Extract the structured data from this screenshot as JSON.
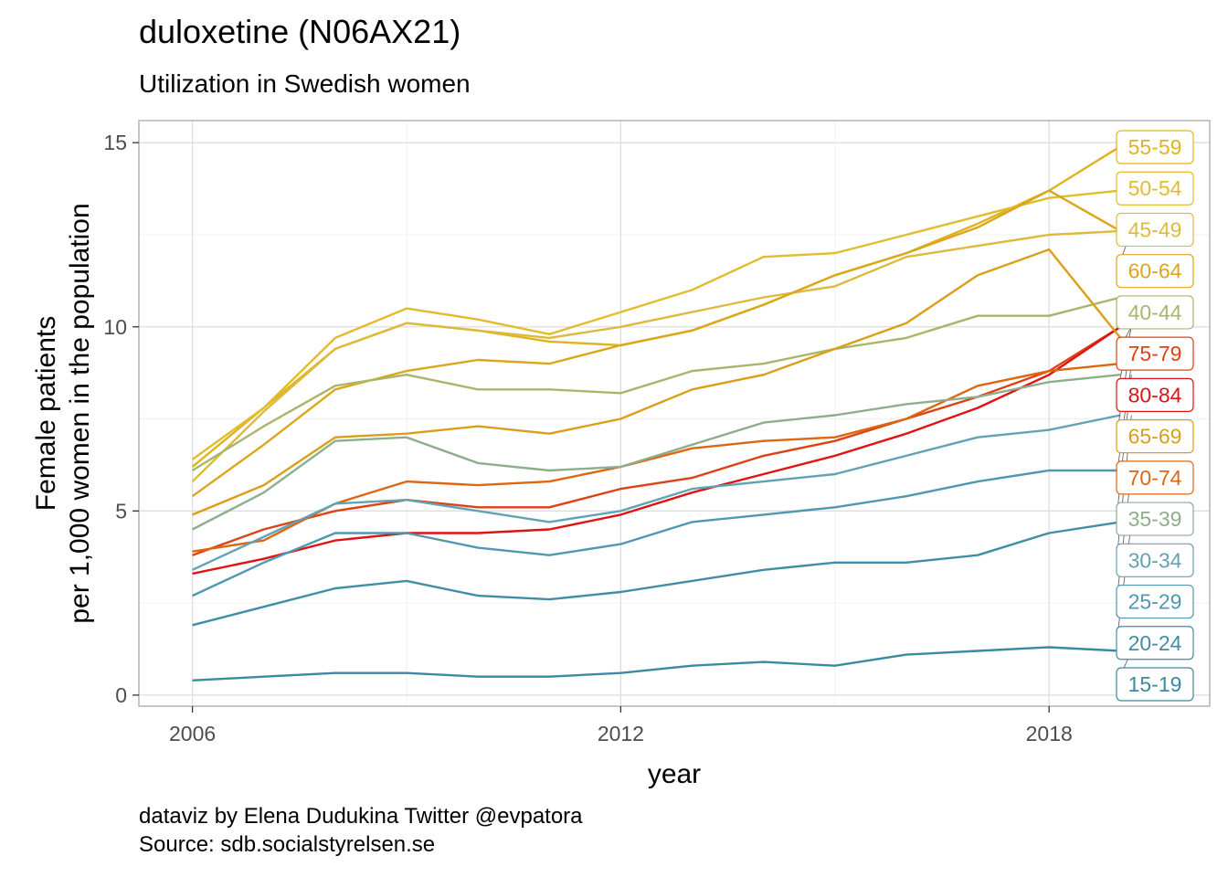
{
  "title": "duloxetine (N06AX21)",
  "subtitle": "Utilization in Swedish women",
  "caption": {
    "line1": "dataviz by Elena Dudukina Twitter @evpatora",
    "line2": "Source: sdb.socialstyrelsen.se"
  },
  "chart_data": {
    "type": "line",
    "title": "duloxetine (N06AX21)",
    "subtitle": "Utilization in Swedish women",
    "xlabel": "year",
    "ylabel": "Female patients\nper 1,000 women in the population",
    "xlim": [
      2005.25,
      2020.25
    ],
    "ylim": [
      -0.3,
      15.6
    ],
    "x_ticks": [
      2006,
      2012,
      2018
    ],
    "y_ticks": [
      0,
      5,
      10,
      15
    ],
    "grid": true,
    "legend": "direct labels at right",
    "x": [
      2006,
      2007,
      2008,
      2009,
      2010,
      2011,
      2012,
      2013,
      2014,
      2015,
      2016,
      2017,
      2018,
      2019
    ],
    "series": [
      {
        "name": "55-59",
        "color": "#E0B21F",
        "values": [
          6.2,
          7.8,
          9.4,
          10.1,
          9.9,
          9.6,
          9.5,
          9.9,
          10.6,
          11.4,
          12.0,
          12.8,
          13.7,
          14.9
        ]
      },
      {
        "name": "50-54",
        "color": "#E2BC2C",
        "values": [
          6.4,
          7.8,
          9.7,
          10.5,
          10.2,
          9.8,
          10.4,
          11.0,
          11.9,
          12.0,
          12.5,
          13.0,
          13.5,
          13.7
        ]
      },
      {
        "name": "45-49",
        "color": "#DDBA3E",
        "values": [
          5.8,
          7.7,
          9.4,
          10.1,
          9.9,
          9.7,
          10.0,
          10.4,
          10.8,
          11.1,
          11.9,
          12.2,
          12.5,
          12.6
        ]
      },
      {
        "name": "60-64",
        "color": "#DCA61B",
        "values": [
          5.4,
          6.8,
          8.3,
          8.8,
          9.1,
          9.0,
          9.5,
          9.9,
          10.6,
          11.4,
          12.0,
          12.7,
          13.7,
          12.6
        ]
      },
      {
        "name": "40-44",
        "color": "#A7B66A",
        "values": [
          6.1,
          7.3,
          8.4,
          8.7,
          8.3,
          8.3,
          8.2,
          8.8,
          9.0,
          9.4,
          9.7,
          10.3,
          10.3,
          10.8
        ]
      },
      {
        "name": "75-79",
        "color": "#DD4214",
        "values": [
          3.8,
          4.5,
          5.0,
          5.3,
          5.1,
          5.1,
          5.6,
          5.9,
          6.5,
          6.9,
          7.5,
          8.1,
          8.8,
          10.0
        ]
      },
      {
        "name": "80-84",
        "color": "#E01313",
        "values": [
          3.3,
          3.7,
          4.2,
          4.4,
          4.4,
          4.5,
          4.9,
          5.5,
          6.0,
          6.5,
          7.1,
          7.8,
          8.7,
          10.0
        ]
      },
      {
        "name": "65-69",
        "color": "#DC9E18",
        "values": [
          4.9,
          5.7,
          7.0,
          7.1,
          7.3,
          7.1,
          7.5,
          8.3,
          8.7,
          9.4,
          10.1,
          11.4,
          12.1,
          9.7
        ]
      },
      {
        "name": "70-74",
        "color": "#DD6611",
        "values": [
          3.9,
          4.2,
          5.2,
          5.8,
          5.7,
          5.8,
          6.2,
          6.7,
          6.9,
          7.0,
          7.5,
          8.4,
          8.8,
          9.0
        ]
      },
      {
        "name": "35-39",
        "color": "#8DAE8C",
        "values": [
          4.5,
          5.5,
          6.9,
          7.0,
          6.3,
          6.1,
          6.2,
          6.8,
          7.4,
          7.6,
          7.9,
          8.1,
          8.5,
          8.7
        ]
      },
      {
        "name": "30-34",
        "color": "#62A2B4",
        "values": [
          3.4,
          4.3,
          5.2,
          5.3,
          5.0,
          4.7,
          5.0,
          5.6,
          5.8,
          6.0,
          6.5,
          7.0,
          7.2,
          7.6
        ]
      },
      {
        "name": "25-29",
        "color": "#4F98AF",
        "values": [
          2.7,
          3.6,
          4.4,
          4.4,
          4.0,
          3.8,
          4.1,
          4.7,
          4.9,
          5.1,
          5.4,
          5.8,
          6.1,
          6.1
        ]
      },
      {
        "name": "20-24",
        "color": "#3F8EA6",
        "values": [
          1.9,
          2.4,
          2.9,
          3.1,
          2.7,
          2.6,
          2.8,
          3.1,
          3.4,
          3.6,
          3.6,
          3.8,
          4.4,
          4.7
        ]
      },
      {
        "name": "15-19",
        "color": "#3A8AA0",
        "values": [
          0.4,
          0.5,
          0.6,
          0.6,
          0.5,
          0.5,
          0.6,
          0.8,
          0.9,
          0.8,
          1.1,
          1.2,
          1.3,
          1.2
        ]
      }
    ]
  }
}
